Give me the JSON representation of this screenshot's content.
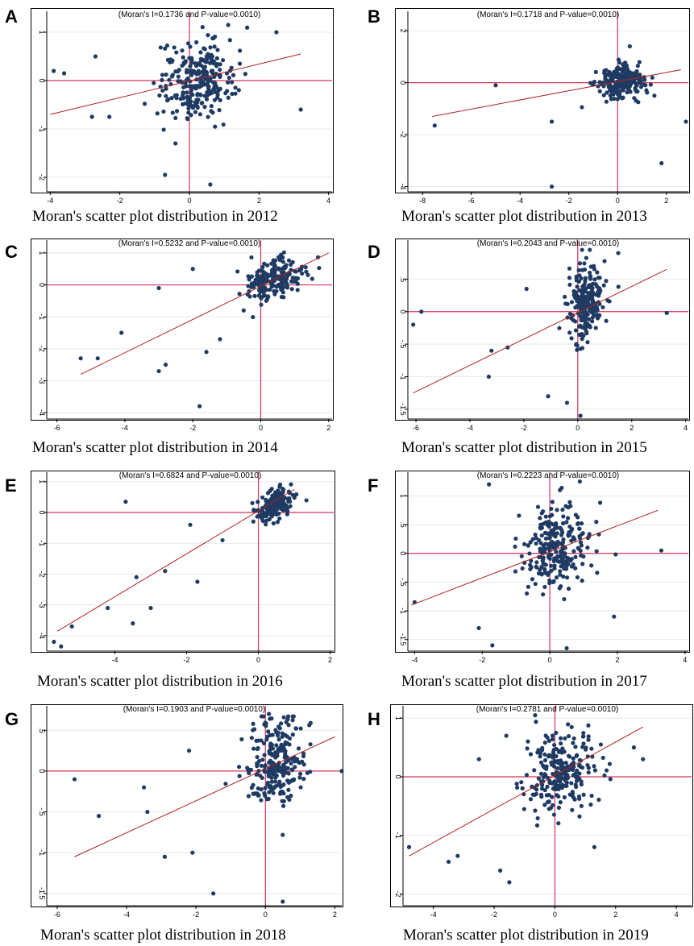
{
  "style": {
    "ref_color": "#d6335a",
    "fit_color": "#b22222",
    "point_color": "#1f3b63",
    "grid_color": "#e3eaf0"
  },
  "chart_data": [
    {
      "type": "scatter",
      "panel": "A",
      "moran_i": 0.1736,
      "p_value": 0.001,
      "stat_text": "(Moran's I=0.1736 and P-value=0.0010)",
      "caption": "Moran's scatter plot distribution in 2012",
      "xlim": [
        -4.1,
        4.1
      ],
      "ylim": [
        -2.3,
        1.3
      ],
      "x_ticks": [
        -4,
        -2,
        0,
        2,
        4
      ],
      "y_ticks": [
        -2,
        -1,
        0,
        1
      ],
      "x_tick_labels": [
        "-4",
        "-2",
        "0",
        "2",
        "4"
      ],
      "y_tick_labels": [
        "-2",
        "-1",
        "0",
        "1"
      ],
      "fit_line": {
        "x": [
          -4.0,
          3.2
        ],
        "y": [
          -0.7,
          0.55
        ]
      },
      "n_points": 260,
      "cluster": {
        "mx": 0.2,
        "my": 0.0,
        "sx": 0.9,
        "sy": 0.4
      },
      "outliers": [
        [
          -3.9,
          0.2
        ],
        [
          -3.6,
          0.15
        ],
        [
          -2.7,
          0.5
        ],
        [
          -2.8,
          -0.75
        ],
        [
          -2.3,
          -0.75
        ],
        [
          -0.7,
          -1.95
        ],
        [
          0.6,
          -2.15
        ],
        [
          3.2,
          -0.6
        ],
        [
          2.5,
          1.0
        ],
        [
          -0.4,
          -1.3
        ]
      ]
    },
    {
      "type": "scatter",
      "panel": "B",
      "moran_i": 0.1718,
      "p_value": 0.001,
      "stat_text": "(Moran's I=0.1718 and P-value=0.0010)",
      "caption": "Moran's scatter plot distribution in 2013",
      "xlim": [
        -8.6,
        2.9
      ],
      "ylim": [
        -4.2,
        2.5
      ],
      "x_ticks": [
        -8,
        -6,
        -4,
        -2,
        0,
        2
      ],
      "y_ticks": [
        -4,
        -2,
        0,
        2
      ],
      "x_tick_labels": [
        "-8",
        "-6",
        "-4",
        "-2",
        "0",
        "2"
      ],
      "y_tick_labels": [
        "-4",
        "-2",
        "0",
        "2"
      ],
      "fit_line": {
        "x": [
          -7.6,
          2.6
        ],
        "y": [
          -1.3,
          0.5
        ]
      },
      "n_points": 230,
      "cluster": {
        "mx": 0.1,
        "my": 0.0,
        "sx": 0.8,
        "sy": 0.3
      },
      "outliers": [
        [
          -7.5,
          -1.65
        ],
        [
          -5.0,
          -0.1
        ],
        [
          -2.7,
          -1.5
        ],
        [
          -2.7,
          -4.0
        ],
        [
          1.8,
          -3.1
        ],
        [
          2.8,
          -1.5
        ],
        [
          0.5,
          1.4
        ]
      ]
    },
    {
      "type": "scatter",
      "panel": "C",
      "moran_i": 0.5232,
      "p_value": 0.001,
      "stat_text": "(Moran's I=0.5232 and P-value=0.0010)",
      "caption": "Moran's scatter plot distribution in 2014",
      "xlim": [
        -6.3,
        2.1
      ],
      "ylim": [
        -4.2,
        1.2
      ],
      "x_ticks": [
        -6,
        -4,
        -2,
        0,
        2
      ],
      "y_ticks": [
        -4,
        -3,
        -2,
        -1,
        0,
        1
      ],
      "x_tick_labels": [
        "-6",
        "-4",
        "-2",
        "0",
        "2"
      ],
      "y_tick_labels": [
        "-4",
        "-3",
        "-2",
        "-1",
        "0",
        "1"
      ],
      "fit_line": {
        "x": [
          -5.3,
          2.0
        ],
        "y": [
          -2.8,
          1.0
        ]
      },
      "n_points": 190,
      "cluster": {
        "mx": 0.4,
        "my": 0.2,
        "sx": 0.7,
        "sy": 0.3
      },
      "outliers": [
        [
          -5.3,
          -2.3
        ],
        [
          -4.8,
          -2.3
        ],
        [
          -4.1,
          -1.5
        ],
        [
          -3.0,
          -2.7
        ],
        [
          -3.0,
          -0.1
        ],
        [
          -2.8,
          -2.5
        ],
        [
          -1.8,
          -3.8
        ],
        [
          -2.0,
          0.5
        ],
        [
          -1.6,
          -2.1
        ],
        [
          -1.2,
          -1.7
        ]
      ]
    },
    {
      "type": "scatter",
      "panel": "D",
      "moran_i": 0.2043,
      "p_value": 0.001,
      "stat_text": "(Moran's I=0.2043 and P-value=0.0010)",
      "caption": "Moran's scatter plot distribution in 2015",
      "xlim": [
        -6.3,
        4.1
      ],
      "ylim": [
        -1.65,
        1.0
      ],
      "x_ticks": [
        -6,
        -4,
        -2,
        0,
        2,
        4
      ],
      "y_ticks": [
        -1.5,
        -1,
        -0.5,
        0,
        0.5
      ],
      "x_tick_labels": [
        "-6",
        "-4",
        "-2",
        "0",
        "2",
        "4"
      ],
      "y_tick_labels": [
        "-1.5",
        "-1",
        "-.5",
        "0",
        ".5"
      ],
      "fit_line": {
        "x": [
          -6.1,
          3.3
        ],
        "y": [
          -1.25,
          0.65
        ]
      },
      "n_points": 220,
      "cluster": {
        "mx": 0.3,
        "my": 0.15,
        "sx": 0.6,
        "sy": 0.3
      },
      "outliers": [
        [
          -6.1,
          -0.2
        ],
        [
          -5.8,
          0.0
        ],
        [
          -3.3,
          -1.0
        ],
        [
          -3.2,
          -0.6
        ],
        [
          -2.6,
          -0.55
        ],
        [
          -1.9,
          0.35
        ],
        [
          -1.1,
          -1.3
        ],
        [
          1.5,
          0.9
        ],
        [
          3.3,
          -0.02
        ],
        [
          0.1,
          -1.6
        ],
        [
          -0.4,
          -1.4
        ]
      ]
    },
    {
      "type": "scatter",
      "panel": "E",
      "moran_i": 0.6824,
      "p_value": 0.001,
      "stat_text": "(Moran's I=0.6824 and P-value=0.0010)",
      "caption": "Moran's scatter plot distribution in 2016",
      "xlim": [
        -5.9,
        2.1
      ],
      "ylim": [
        -4.5,
        1.1
      ],
      "x_ticks": [
        -4,
        -2,
        0,
        2
      ],
      "y_ticks": [
        -4,
        -3,
        -2,
        -1,
        0,
        1
      ],
      "x_tick_labels": [
        "-4",
        "-2",
        "0",
        "2"
      ],
      "y_tick_labels": [
        "-4",
        "-3",
        "-2",
        "-1",
        "0",
        "1"
      ],
      "fit_line": {
        "x": [
          -5.6,
          1.0
        ],
        "y": [
          -3.85,
          0.75
        ]
      },
      "n_points": 170,
      "cluster": {
        "mx": 0.4,
        "my": 0.2,
        "sx": 0.4,
        "sy": 0.25
      },
      "outliers": [
        [
          -5.7,
          -4.2
        ],
        [
          -5.5,
          -4.35
        ],
        [
          -5.2,
          -3.7
        ],
        [
          -4.2,
          -3.1
        ],
        [
          -3.7,
          0.35
        ],
        [
          -3.5,
          -3.6
        ],
        [
          -3.4,
          -2.1
        ],
        [
          -3.0,
          -3.1
        ],
        [
          -2.6,
          -1.9
        ],
        [
          -1.9,
          -0.4
        ],
        [
          -1.7,
          -2.25
        ],
        [
          -1.0,
          -0.9
        ]
      ]
    },
    {
      "type": "scatter",
      "panel": "F",
      "moran_i": 0.2223,
      "p_value": 0.001,
      "stat_text": "(Moran's I=0.2223 and P-value=0.0010)",
      "caption": "Moran's scatter plot distribution in 2017",
      "xlim": [
        -4.2,
        4.1
      ],
      "ylim": [
        -1.7,
        1.3
      ],
      "x_ticks": [
        -4,
        -2,
        0,
        2,
        4
      ],
      "y_ticks": [
        -1.5,
        -1,
        -0.5,
        0,
        0.5,
        1
      ],
      "x_tick_labels": [
        "-4",
        "-2",
        "0",
        "2",
        "4"
      ],
      "y_tick_labels": [
        "-1.5",
        "-1",
        "-.5",
        "0",
        ".5",
        "1"
      ],
      "fit_line": {
        "x": [
          -4.1,
          3.2
        ],
        "y": [
          -0.9,
          0.75
        ]
      },
      "n_points": 240,
      "cluster": {
        "mx": 0.2,
        "my": 0.1,
        "sx": 0.9,
        "sy": 0.35
      },
      "outliers": [
        [
          -4.0,
          -0.85
        ],
        [
          -2.1,
          -1.3
        ],
        [
          -1.8,
          1.2
        ],
        [
          -1.7,
          -1.6
        ],
        [
          0.5,
          -1.65
        ],
        [
          0.3,
          1.1
        ],
        [
          3.3,
          0.05
        ],
        [
          1.9,
          -1.1
        ]
      ]
    },
    {
      "type": "scatter",
      "panel": "G",
      "moran_i": 0.1903,
      "p_value": 0.001,
      "stat_text": "(Moran's I=0.1903 and P-value=0.0010)",
      "caption": "Moran's scatter plot distribution in 2018",
      "xlim": [
        -6.3,
        2.2
      ],
      "ylim": [
        -1.65,
        0.72
      ],
      "x_ticks": [
        -6,
        -4,
        -2,
        0,
        2
      ],
      "y_ticks": [
        -1.5,
        -1,
        -0.5,
        0,
        0.5
      ],
      "x_tick_labels": [
        "-6",
        "-4",
        "-2",
        "0",
        "2"
      ],
      "y_tick_labels": [
        "-1.5",
        "-1",
        "-.5",
        "0",
        ".5"
      ],
      "fit_line": {
        "x": [
          -5.5,
          2.0
        ],
        "y": [
          -1.05,
          0.42
        ]
      },
      "n_points": 250,
      "cluster": {
        "mx": 0.3,
        "my": 0.1,
        "sx": 0.7,
        "sy": 0.3
      },
      "outliers": [
        [
          -5.5,
          -0.1
        ],
        [
          -4.8,
          -0.55
        ],
        [
          -3.4,
          -0.5
        ],
        [
          -3.5,
          -0.2
        ],
        [
          -2.9,
          -1.05
        ],
        [
          -2.1,
          -1.0
        ],
        [
          -1.5,
          -1.5
        ],
        [
          0.5,
          -1.6
        ],
        [
          2.2,
          0.0
        ],
        [
          -2.2,
          0.25
        ],
        [
          0.1,
          0.7
        ]
      ]
    },
    {
      "type": "scatter",
      "panel": "H",
      "moran_i": 0.2781,
      "p_value": 0.001,
      "stat_text": "(Moran's I=0.2781 and P-value=0.0010)",
      "caption": "Moran's scatter plot distribution in 2019",
      "xlim": [
        -5.0,
        4.5
      ],
      "ylim": [
        -2.2,
        1.1
      ],
      "x_ticks": [
        -4,
        -2,
        0,
        2,
        4
      ],
      "y_ticks": [
        -2,
        -1,
        0,
        1
      ],
      "x_tick_labels": [
        "-4",
        "-2",
        "0",
        "2",
        "4"
      ],
      "y_tick_labels": [
        "-2",
        "-1",
        "0",
        "1"
      ],
      "fit_line": {
        "x": [
          -4.8,
          2.9
        ],
        "y": [
          -1.35,
          0.85
        ]
      },
      "n_points": 240,
      "cluster": {
        "mx": 0.2,
        "my": 0.1,
        "sx": 0.9,
        "sy": 0.35
      },
      "outliers": [
        [
          -4.8,
          -1.2
        ],
        [
          -3.2,
          -1.35
        ],
        [
          -3.5,
          -1.45
        ],
        [
          -1.5,
          -1.8
        ],
        [
          -1.8,
          -1.6
        ],
        [
          -2.5,
          0.3
        ],
        [
          -1.6,
          0.7
        ],
        [
          1.3,
          -1.2
        ],
        [
          2.9,
          0.3
        ],
        [
          2.6,
          0.5
        ]
      ]
    }
  ]
}
